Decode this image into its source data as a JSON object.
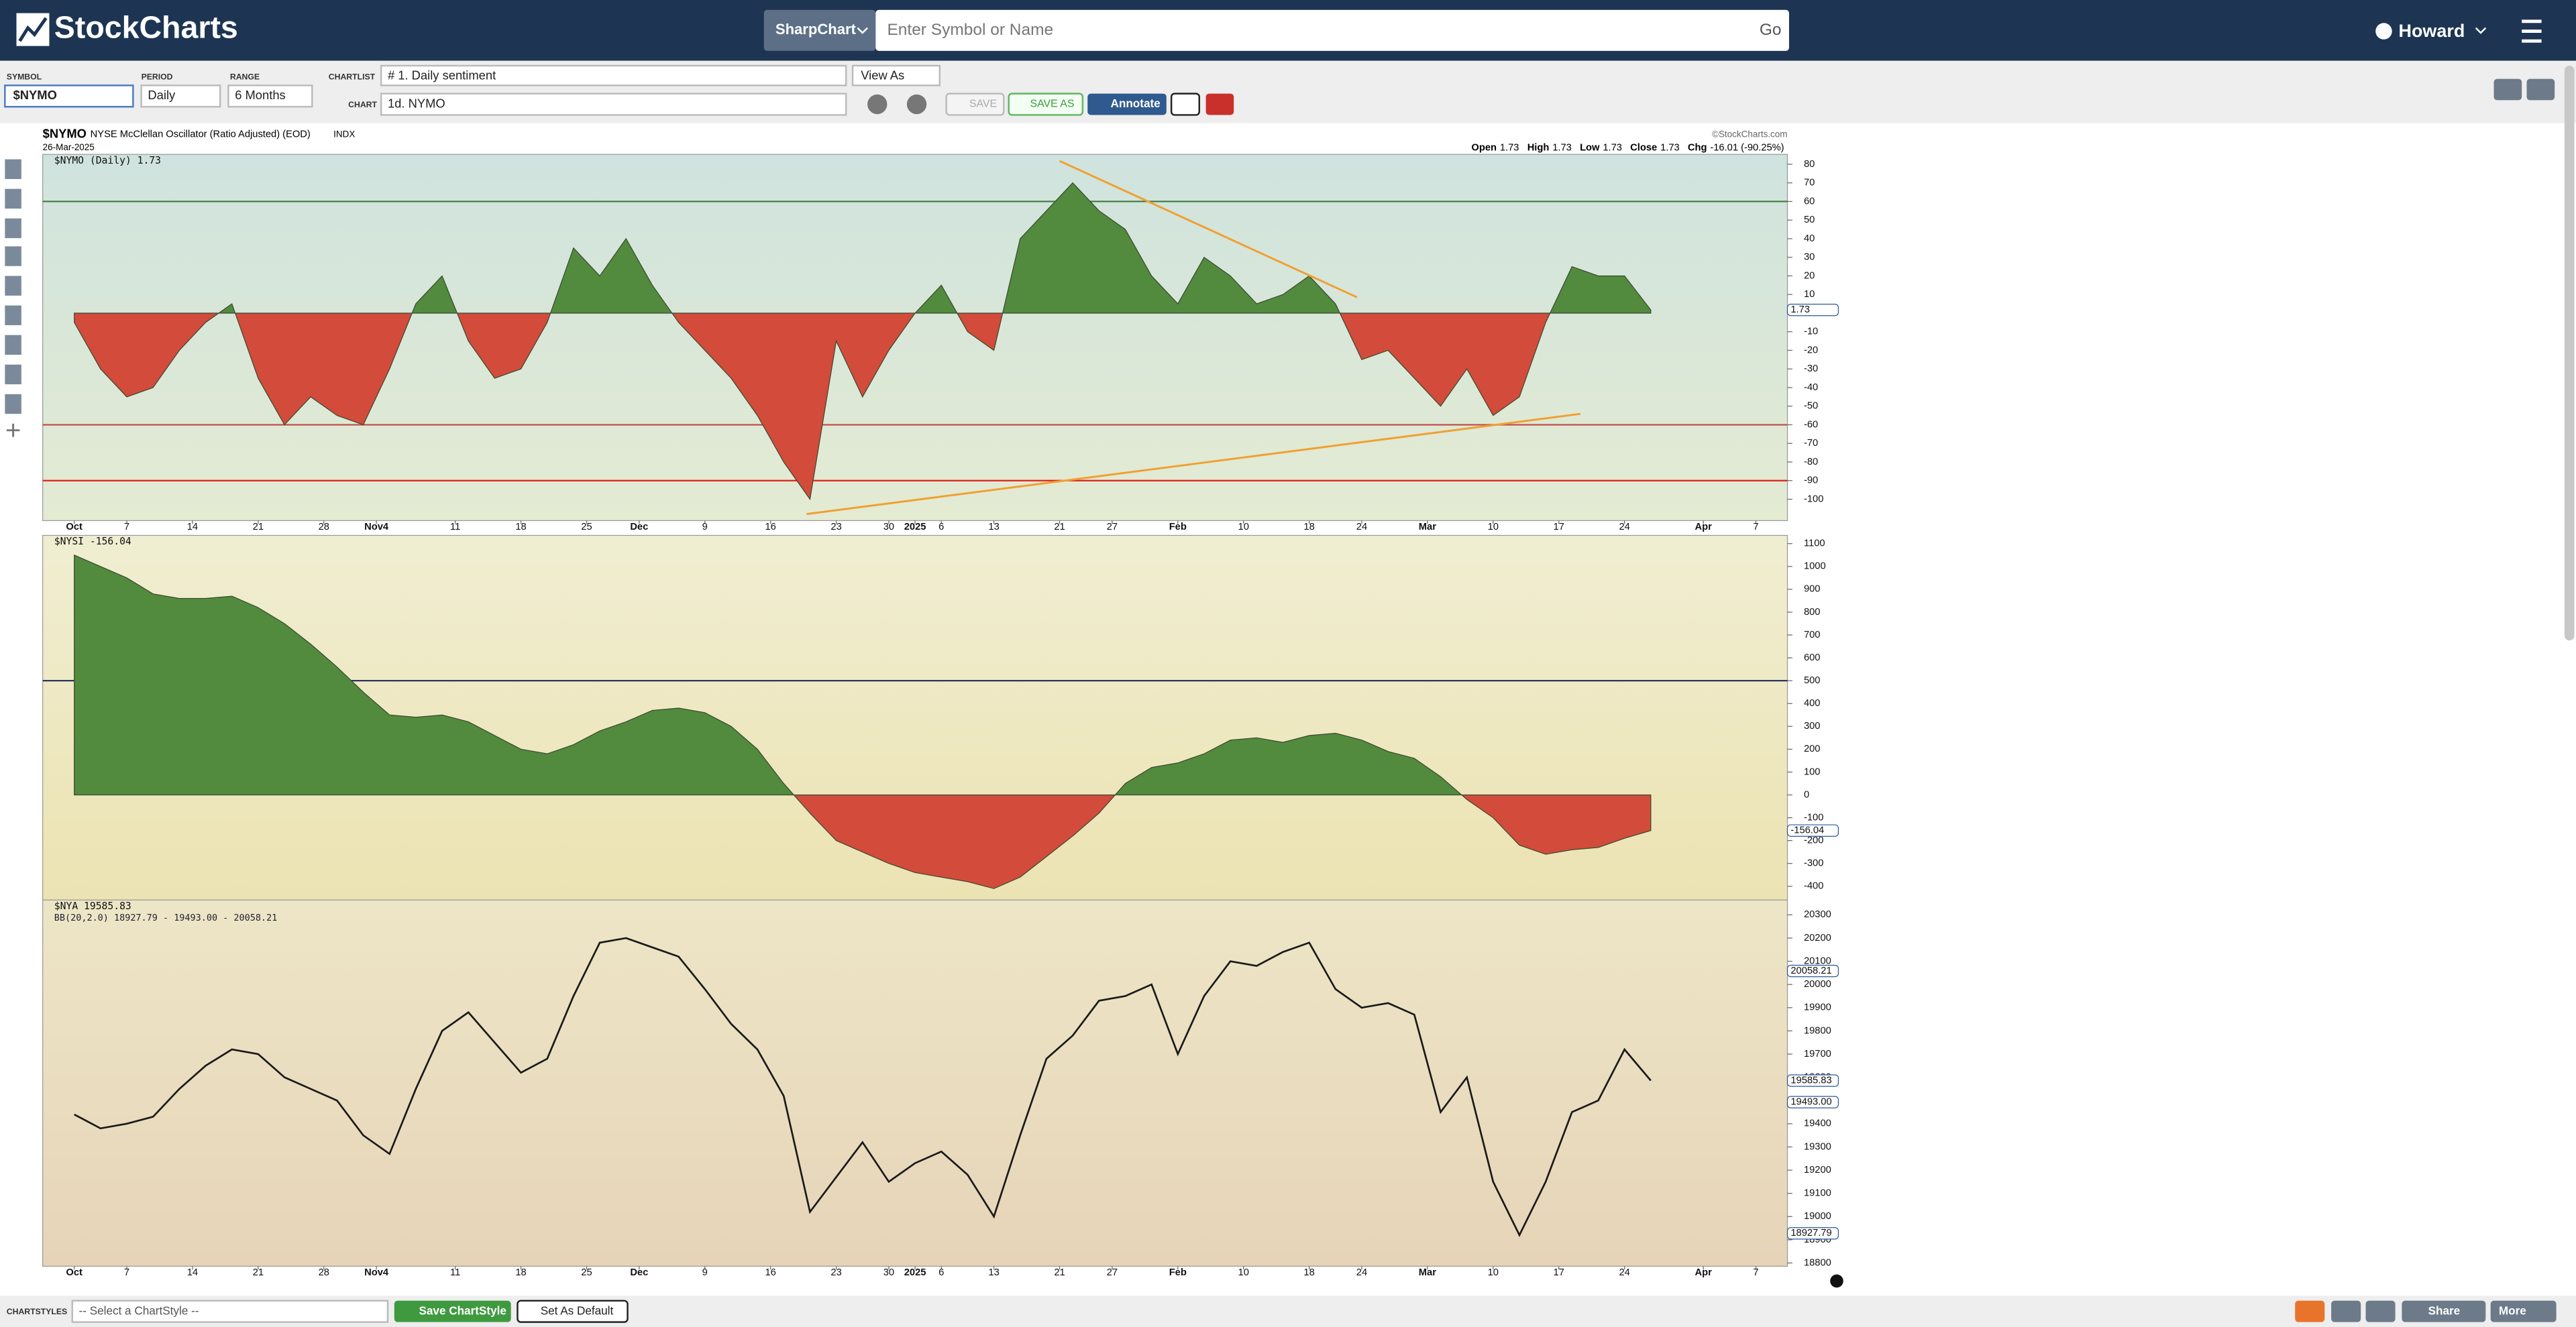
{
  "header": {
    "logo": "StockCharts",
    "product": "SharpChart",
    "search_placeholder": "Enter Symbol or Name",
    "go": "Go",
    "user": "Howard"
  },
  "toolbar": {
    "symbol_label": "SYMBOL",
    "symbol": "$NYMO",
    "period_label": "PERIOD",
    "period": "Daily",
    "range_label": "RANGE",
    "range": "6 Months",
    "chartlist_label": "CHARTLIST",
    "chartlist": "# 1. Daily sentiment",
    "view_as": "View As",
    "chart_label": "CHART",
    "chart": "1d. NYMO",
    "save": "SAVE",
    "save_as": "SAVE AS",
    "annotate": "Annotate"
  },
  "chart_header": {
    "symbol": "$NYMO",
    "name": "NYSE McClellan Oscillator (Ratio Adjusted) (EOD)",
    "exchange": "INDX",
    "date": "26-Mar-2025",
    "copyright": "©StockCharts.com",
    "quote": [
      {
        "label": "Open",
        "value": "1.73"
      },
      {
        "label": "High",
        "value": "1.73"
      },
      {
        "label": "Low",
        "value": "1.73"
      },
      {
        "label": "Close",
        "value": "1.73"
      },
      {
        "label": "Chg",
        "value": "-16.01 (-90.25%)"
      }
    ]
  },
  "footer": {
    "chartstyles_label": "CHARTSTYLES",
    "select": "-- Select a ChartStyle --",
    "save_style": "Save ChartStyle",
    "set_default": "Set As Default",
    "share": "Share",
    "more": "More"
  },
  "chart_data": [
    {
      "type": "area",
      "title": "$NYMO (Daily) 1.73",
      "positive_color": "#528a3e",
      "negative_color": "#d24b3b",
      "x": [
        0,
        2,
        4,
        6,
        8,
        10,
        12,
        14,
        16,
        18,
        20,
        22,
        24,
        26,
        28,
        30,
        32,
        34,
        36,
        38,
        40,
        42,
        44,
        46,
        48,
        50,
        52,
        54,
        56,
        58,
        60,
        62,
        64,
        66,
        68,
        70,
        72,
        74,
        76,
        78,
        80,
        82,
        84,
        86,
        88,
        90,
        92,
        94,
        96,
        98,
        100,
        102,
        104,
        106,
        108,
        110,
        112,
        114,
        116,
        118,
        120
      ],
      "values": [
        -5,
        -30,
        -45,
        -40,
        -20,
        -5,
        5,
        -35,
        -60,
        -45,
        -55,
        -60,
        -30,
        5,
        20,
        -15,
        -35,
        -30,
        -5,
        35,
        20,
        40,
        15,
        -5,
        -20,
        -35,
        -55,
        -80,
        -100,
        -15,
        -45,
        -20,
        0,
        15,
        -10,
        -20,
        40,
        55,
        70,
        55,
        45,
        20,
        5,
        30,
        20,
        5,
        10,
        20,
        5,
        -25,
        -20,
        -35,
        -50,
        -30,
        -55,
        -45,
        -5,
        25,
        20,
        20,
        1.73
      ],
      "xlim": [
        -2.4,
        130.4
      ],
      "ylim": [
        -111.5,
        85.3
      ],
      "yticks": [
        80,
        70,
        60,
        50,
        40,
        30,
        20,
        10,
        -10,
        -20,
        -30,
        -40,
        -50,
        -60,
        -70,
        -80,
        -90,
        -100
      ],
      "reference_lines": [
        {
          "value": 60,
          "color": "#3d7a3d"
        },
        {
          "value": -60,
          "color": "#c0504d"
        },
        {
          "value": -90,
          "color": "#e0201a"
        }
      ],
      "price_markers": [
        {
          "value": 1.73,
          "label": "1.73"
        }
      ],
      "xticks": [
        {
          "value": 0,
          "label": "Oct"
        },
        {
          "value": 4,
          "label": "7"
        },
        {
          "value": 9,
          "label": "14"
        },
        {
          "value": 14,
          "label": "21"
        },
        {
          "value": 19,
          "label": "28"
        },
        {
          "value": 23,
          "label": "Nov4"
        },
        {
          "value": 29,
          "label": "11"
        },
        {
          "value": 34,
          "label": "18"
        },
        {
          "value": 39,
          "label": "25"
        },
        {
          "value": 43,
          "label": "Dec"
        },
        {
          "value": 48,
          "label": "9"
        },
        {
          "value": 53,
          "label": "16"
        },
        {
          "value": 58,
          "label": "23"
        },
        {
          "value": 62,
          "label": "30"
        },
        {
          "value": 64,
          "label": "2025"
        },
        {
          "value": 66,
          "label": "6"
        },
        {
          "value": 70,
          "label": "13"
        },
        {
          "value": 75,
          "label": "21"
        },
        {
          "value": 79,
          "label": "27"
        },
        {
          "value": 84,
          "label": "Feb"
        },
        {
          "value": 89,
          "label": "10"
        },
        {
          "value": 94,
          "label": "18"
        },
        {
          "value": 98,
          "label": "24"
        },
        {
          "value": 103,
          "label": "Mar"
        },
        {
          "value": 108,
          "label": "10"
        },
        {
          "value": 113,
          "label": "17"
        },
        {
          "value": 118,
          "label": "24"
        },
        {
          "value": 124,
          "label": "Apr"
        },
        {
          "value": 128,
          "label": "7"
        }
      ]
    },
    {
      "type": "area",
      "title": "$NYSI -156.04",
      "positive_color": "#528a3e",
      "negative_color": "#d24b3b",
      "x": [
        0,
        2,
        4,
        6,
        8,
        10,
        12,
        14,
        16,
        18,
        20,
        22,
        24,
        26,
        28,
        30,
        32,
        34,
        36,
        38,
        40,
        42,
        44,
        46,
        48,
        50,
        52,
        54,
        56,
        58,
        60,
        62,
        64,
        66,
        68,
        70,
        72,
        74,
        76,
        78,
        80,
        82,
        84,
        86,
        88,
        90,
        92,
        94,
        96,
        98,
        100,
        102,
        104,
        106,
        108,
        110,
        112,
        114,
        116,
        118,
        120
      ],
      "values": [
        1050,
        1000,
        950,
        880,
        860,
        860,
        870,
        820,
        750,
        660,
        560,
        450,
        350,
        340,
        350,
        320,
        260,
        200,
        180,
        220,
        280,
        320,
        370,
        380,
        360,
        300,
        200,
        50,
        -80,
        -200,
        -250,
        -300,
        -340,
        -360,
        -380,
        -410,
        -360,
        -270,
        -180,
        -80,
        50,
        120,
        140,
        180,
        240,
        250,
        230,
        260,
        270,
        240,
        190,
        160,
        80,
        -20,
        -100,
        -220,
        -260,
        -240,
        -230,
        -190,
        -156.04
      ],
      "xlim": [
        -2.4,
        130.4
      ],
      "ylim": [
        -460,
        1136
      ],
      "yticks": [
        1100,
        1000,
        900,
        800,
        700,
        600,
        500,
        400,
        300,
        200,
        100,
        0,
        -100,
        -200,
        -300,
        -400
      ],
      "reference_lines": [
        {
          "value": 500,
          "color": "#2a3560"
        }
      ],
      "price_markers": [
        {
          "value": -156.04,
          "label": "-156.04"
        }
      ]
    },
    {
      "type": "line",
      "title": "$NYA 19585.83",
      "subtitle": "BB(20,2.0) 18927.79 - 19493.00 - 20058.21",
      "color": "#1a1a1a",
      "x": [
        0,
        2,
        4,
        6,
        8,
        10,
        12,
        14,
        16,
        18,
        20,
        22,
        24,
        26,
        28,
        30,
        32,
        34,
        36,
        38,
        40,
        42,
        44,
        46,
        48,
        50,
        52,
        54,
        56,
        58,
        60,
        62,
        64,
        66,
        68,
        70,
        72,
        74,
        76,
        78,
        80,
        82,
        84,
        86,
        88,
        90,
        92,
        94,
        96,
        98,
        100,
        102,
        104,
        106,
        108,
        110,
        112,
        114,
        116,
        118,
        120
      ],
      "values": [
        19440,
        19380,
        19400,
        19430,
        19550,
        19650,
        19720,
        19700,
        19600,
        19550,
        19500,
        19350,
        19270,
        19550,
        19800,
        19880,
        19750,
        19620,
        19680,
        19950,
        20180,
        20200,
        20160,
        20120,
        19980,
        19830,
        19720,
        19520,
        19020,
        19170,
        19320,
        19150,
        19230,
        19280,
        19180,
        19000,
        19350,
        19680,
        19780,
        19930,
        19950,
        20000,
        19700,
        19950,
        20100,
        20080,
        20140,
        20180,
        19980,
        19900,
        19920,
        19870,
        19450,
        19600,
        19150,
        18920,
        19150,
        19450,
        19500,
        19720,
        19585.83
      ],
      "xlim": [
        -2.4,
        130.4
      ],
      "ylim": [
        18786,
        20364
      ],
      "yticks": [
        20300,
        20200,
        20100,
        20000,
        19900,
        19800,
        19700,
        19600,
        19500,
        19400,
        19300,
        19200,
        19100,
        19000,
        18900,
        18800
      ],
      "price_markers": [
        {
          "value": 20058.21,
          "label": "20058.21"
        },
        {
          "value": 19585.83,
          "label": "19585.83"
        },
        {
          "value": 19493.0,
          "label": "19493.00"
        },
        {
          "value": 18927.79,
          "label": "18927.79"
        }
      ],
      "xticks": [
        {
          "value": 0,
          "label": "Oct"
        },
        {
          "value": 4,
          "label": "7"
        },
        {
          "value": 9,
          "label": "14"
        },
        {
          "value": 14,
          "label": "21"
        },
        {
          "value": 19,
          "label": "28"
        },
        {
          "value": 23,
          "label": "Nov4"
        },
        {
          "value": 29,
          "label": "11"
        },
        {
          "value": 34,
          "label": "18"
        },
        {
          "value": 39,
          "label": "25"
        },
        {
          "value": 43,
          "label": "Dec"
        },
        {
          "value": 48,
          "label": "9"
        },
        {
          "value": 53,
          "label": "16"
        },
        {
          "value": 58,
          "label": "23"
        },
        {
          "value": 62,
          "label": "30"
        },
        {
          "value": 64,
          "label": "2025"
        },
        {
          "value": 66,
          "label": "6"
        },
        {
          "value": 70,
          "label": "13"
        },
        {
          "value": 75,
          "label": "21"
        },
        {
          "value": 79,
          "label": "27"
        },
        {
          "value": 84,
          "label": "Feb"
        },
        {
          "value": 89,
          "label": "10"
        },
        {
          "value": 94,
          "label": "18"
        },
        {
          "value": 98,
          "label": "24"
        },
        {
          "value": 103,
          "label": "Mar"
        },
        {
          "value": 108,
          "label": "10"
        },
        {
          "value": 113,
          "label": "17"
        },
        {
          "value": 118,
          "label": "24"
        },
        {
          "value": 124,
          "label": "Apr"
        },
        {
          "value": 128,
          "label": "7"
        }
      ]
    }
  ]
}
